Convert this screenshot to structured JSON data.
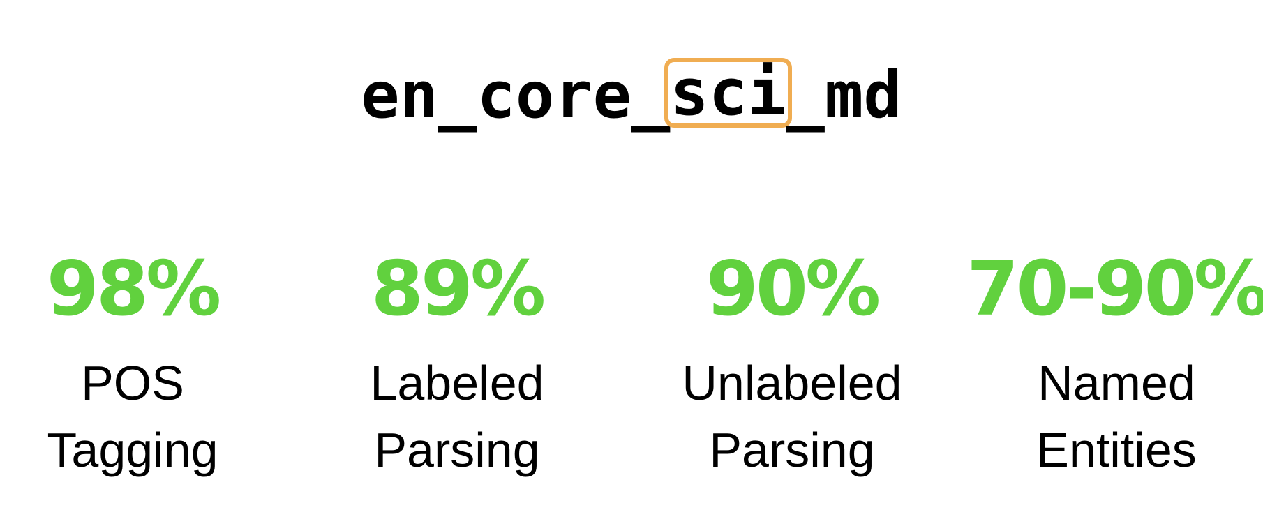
{
  "title": {
    "prefix": "en_core_",
    "highlighted": "sci",
    "suffix": "_md"
  },
  "colors": {
    "metric_value": "#61d13e",
    "highlight_border": "#f0ad52",
    "text": "#000000",
    "background": "#ffffff"
  },
  "metrics": [
    {
      "value": "98%",
      "label_line1": "POS",
      "label_line2": "Tagging"
    },
    {
      "value": "89%",
      "label_line1": "Labeled",
      "label_line2": "Parsing"
    },
    {
      "value": "90%",
      "label_line1": "Unlabeled",
      "label_line2": "Parsing"
    },
    {
      "value": "70-90%",
      "label_line1": "Named",
      "label_line2": "Entities"
    }
  ]
}
